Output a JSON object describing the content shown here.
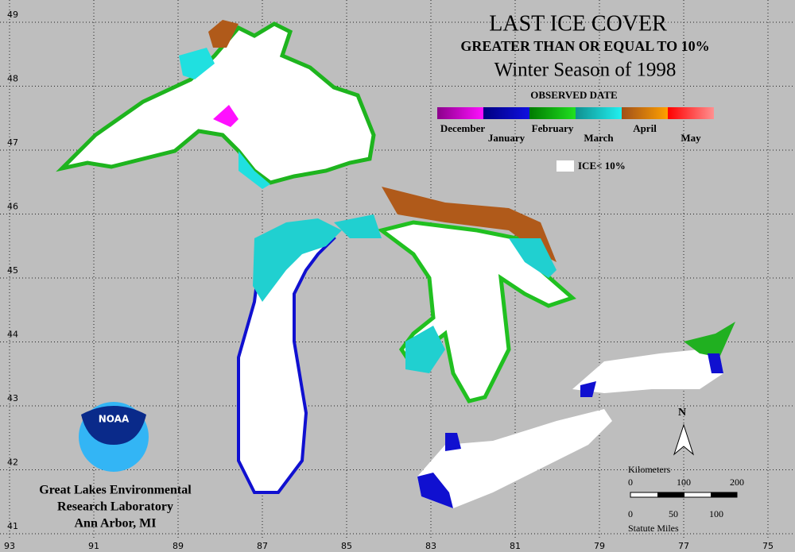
{
  "title": "LAST ICE COVER",
  "subtitle": "GREATER THAN OR EQUAL TO 10%",
  "season": "Winter Season of 1998",
  "legend": {
    "title": "OBSERVED DATE",
    "items": [
      {
        "label": "December",
        "colors": [
          "#8b008b",
          "#ff10ff"
        ]
      },
      {
        "label": "January",
        "colors": [
          "#000080",
          "#1010e0"
        ]
      },
      {
        "label": "February",
        "colors": [
          "#007a00",
          "#20e020"
        ]
      },
      {
        "label": "March",
        "colors": [
          "#109090",
          "#20f0f0"
        ]
      },
      {
        "label": "April",
        "colors": [
          "#a0501a",
          "#ffa000"
        ]
      },
      {
        "label": "May",
        "colors": [
          "#ff0000",
          "#ff9090"
        ]
      }
    ],
    "no_ice": "ICE< 10%"
  },
  "map": {
    "lon_ticks": [
      93,
      91,
      89,
      87,
      85,
      83,
      81,
      79,
      77,
      75
    ],
    "lat_ticks": [
      49,
      48,
      47,
      46,
      45,
      44,
      43,
      42,
      41
    ]
  },
  "scale": {
    "km_title": "Kilometers",
    "km_labels": [
      "0",
      "100",
      "200"
    ],
    "mi_title": "Statute Miles",
    "mi_labels": [
      "0",
      "50",
      "100"
    ]
  },
  "north": "N",
  "logo": "NOAA",
  "credit": [
    "Great Lakes Environmental",
    "Research Laboratory",
    "Ann Arbor, MI"
  ]
}
